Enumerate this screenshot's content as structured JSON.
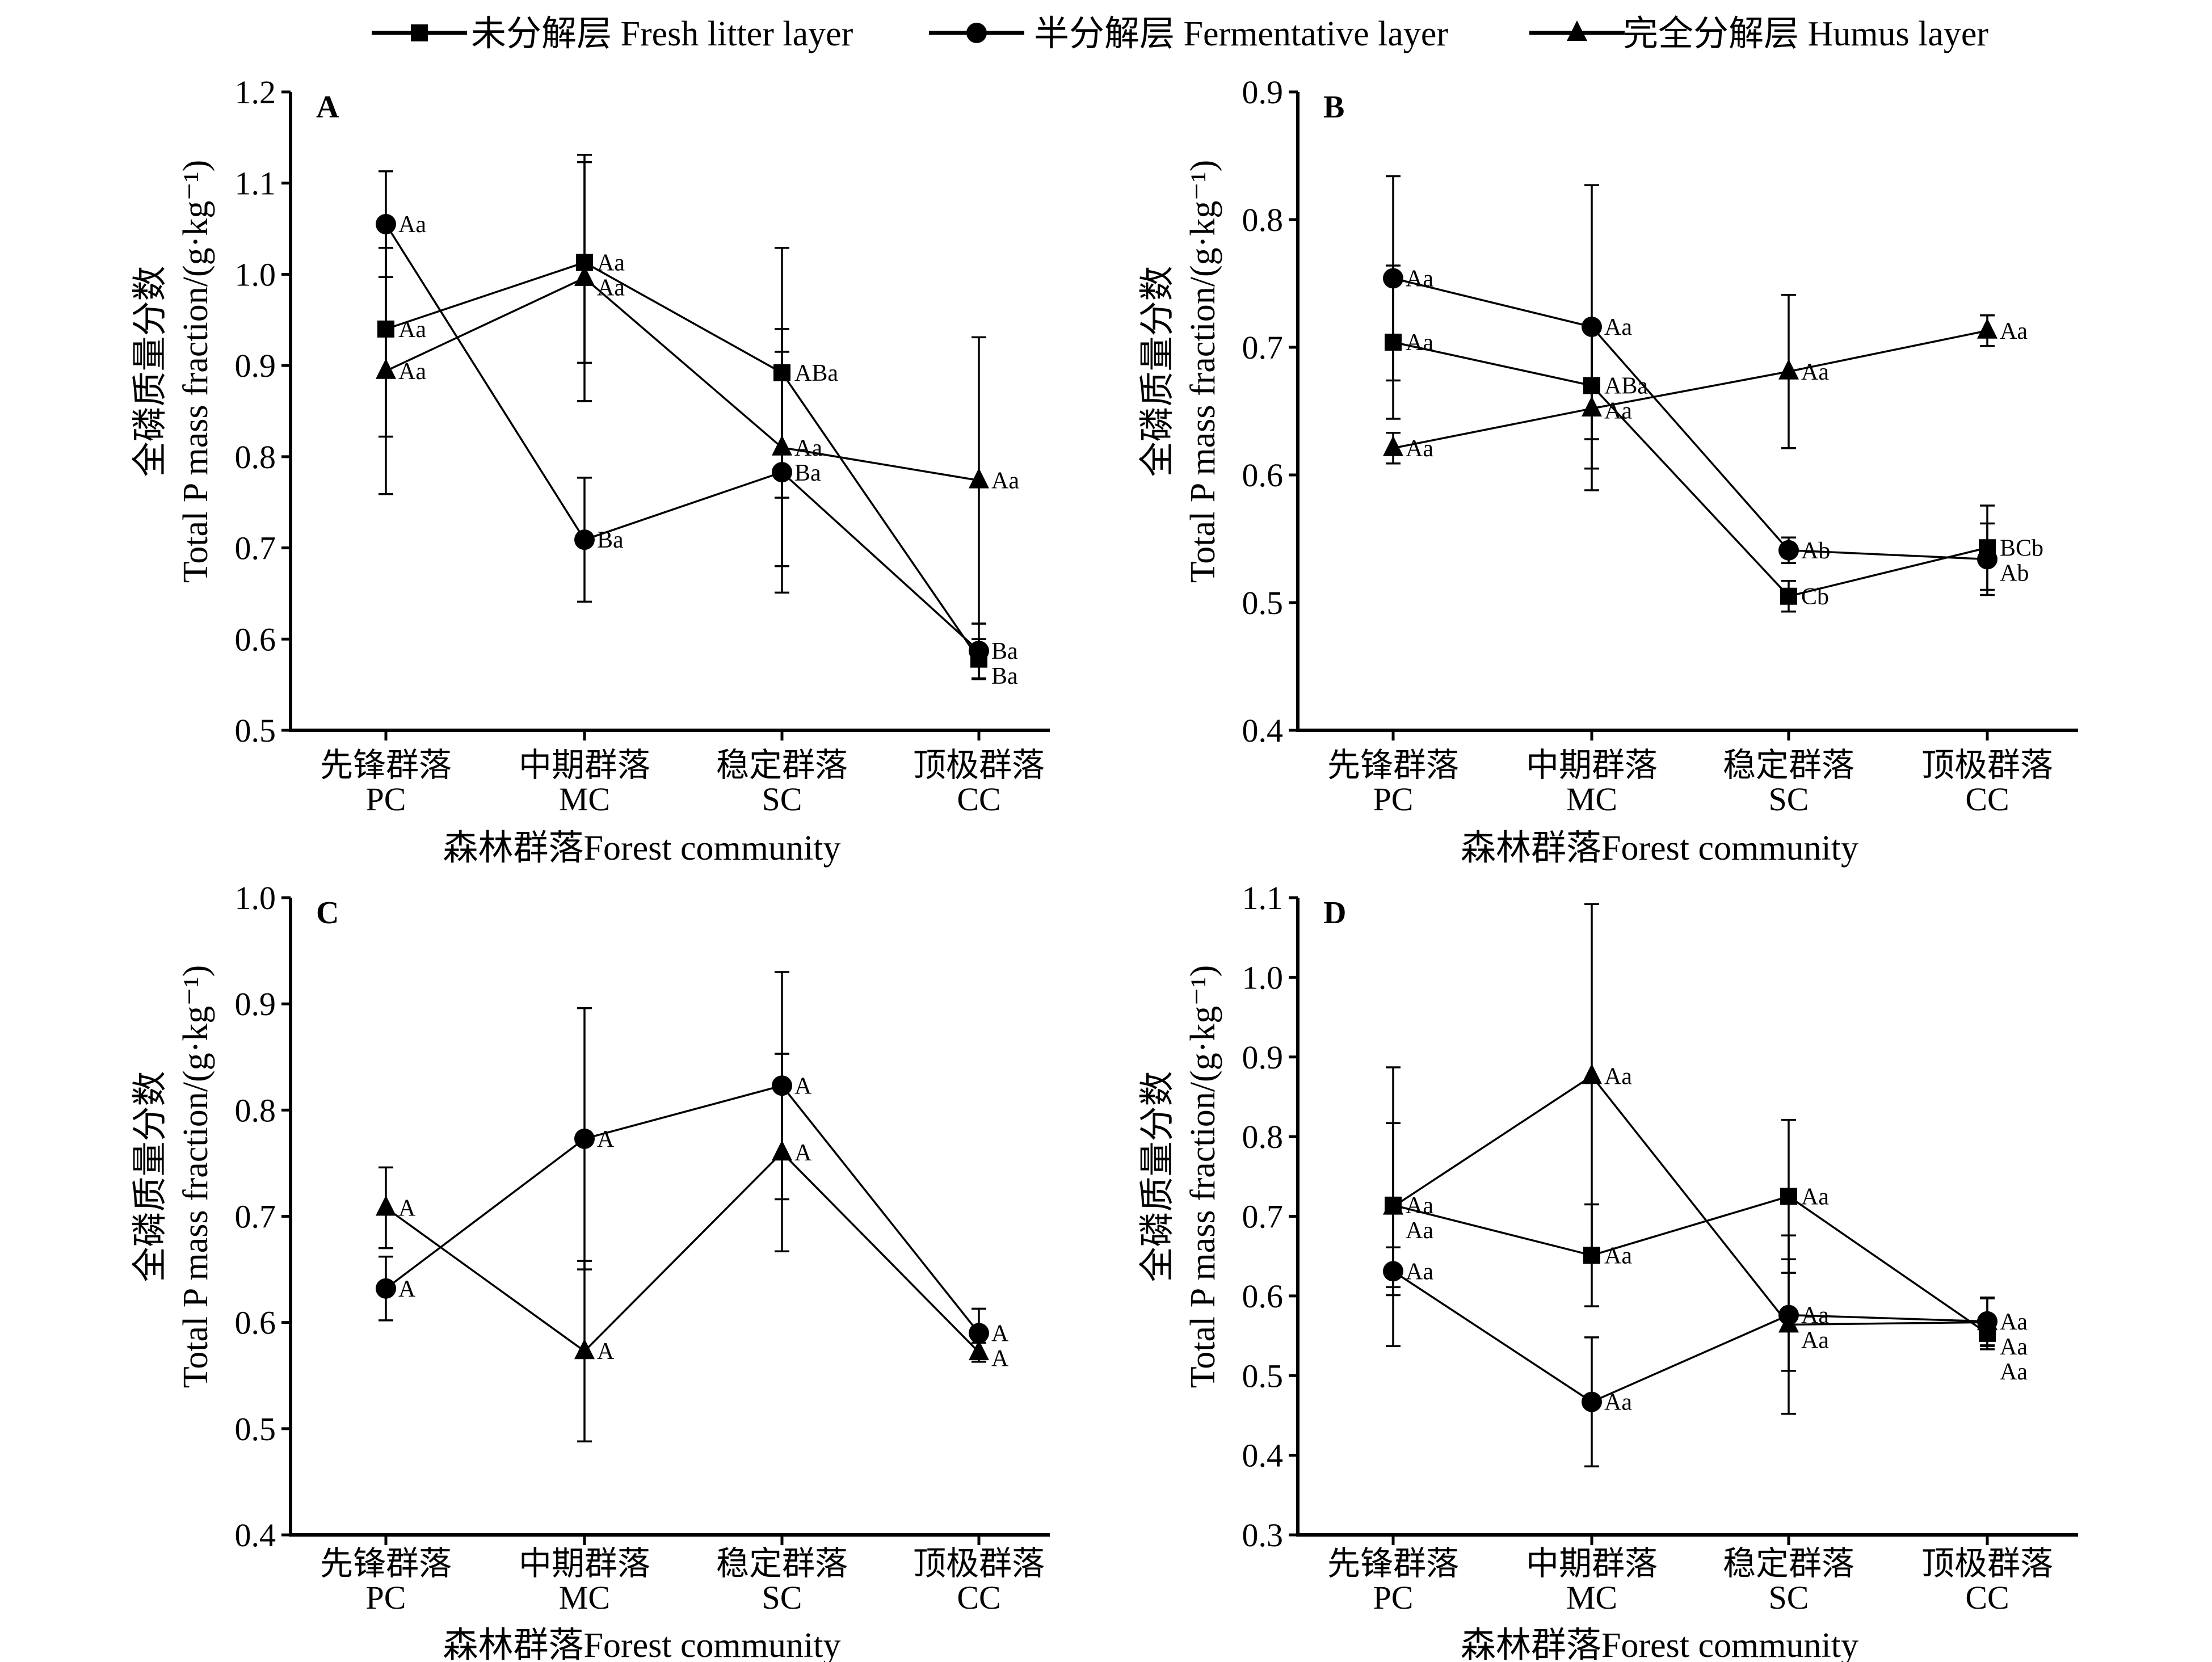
{
  "legend": [
    {
      "label": "未分解层 Fresh litter layer",
      "marker": "square"
    },
    {
      "label": "半分解层 Fermentative layer",
      "marker": "circle"
    },
    {
      "label": "完全分解层 Humus layer",
      "marker": "triangle"
    }
  ],
  "colors": {
    "ink": "#000000",
    "background": "#ffffff"
  },
  "chart_data": [
    {
      "type": "line",
      "panel": "A",
      "categories": [
        [
          "先锋群落",
          "PC"
        ],
        [
          "中期群落",
          "MC"
        ],
        [
          "稳定群落",
          "SC"
        ],
        [
          "顶极群落",
          "CC"
        ]
      ],
      "xlabel": "森林群落Forest community",
      "ylabel": [
        "全磷质量分数",
        "Total P mass fraction/(g·kg⁻¹)"
      ],
      "ylim": [
        0.5,
        1.2
      ],
      "ytick_step": 0.1,
      "series": [
        {
          "name": "未分解层 Fresh litter layer",
          "marker": "square",
          "values": [
            0.94,
            1.013,
            0.892,
            0.578
          ],
          "errors": [
            0.118,
            0.11,
            0.137,
            0.022
          ],
          "labels": [
            "Aa",
            "Aa",
            "ABa",
            "Ba"
          ]
        },
        {
          "name": "半分解层 Fermentative layer",
          "marker": "circle",
          "values": [
            1.055,
            0.709,
            0.783,
            0.587
          ],
          "errors": [
            0.058,
            0.068,
            0.132,
            0.03
          ],
          "labels": [
            "Aa",
            "Ba",
            "Ba",
            "Ba"
          ]
        },
        {
          "name": "完全分解层 Humus layer",
          "marker": "triangle",
          "values": [
            0.894,
            0.996,
            0.81,
            0.774
          ],
          "errors": [
            0.135,
            0.135,
            0.13,
            0.157
          ],
          "labels": [
            "Aa",
            "Aa",
            "Aa",
            "Aa"
          ]
        }
      ]
    },
    {
      "type": "line",
      "panel": "B",
      "categories": [
        [
          "先锋群落",
          "PC"
        ],
        [
          "中期群落",
          "MC"
        ],
        [
          "稳定群落",
          "SC"
        ],
        [
          "顶极群落",
          "CC"
        ]
      ],
      "xlabel": "森林群落Forest community",
      "ylabel": [
        "全磷质量分数",
        "Total P mass fraction/(g·kg⁻¹)"
      ],
      "ylim": [
        0.4,
        0.9
      ],
      "ytick_step": 0.1,
      "series": [
        {
          "name": "未分解层 Fresh litter layer",
          "marker": "square",
          "values": [
            0.704,
            0.67,
            0.505,
            0.543
          ],
          "errors": [
            0.06,
            0.042,
            0.012,
            0.033
          ],
          "labels": [
            "Aa",
            "ABa",
            "Cb",
            "BCb"
          ]
        },
        {
          "name": "半分解层 Fermentative layer",
          "marker": "circle",
          "values": [
            0.754,
            0.716,
            0.541,
            0.534
          ],
          "errors": [
            0.08,
            0.111,
            0.01,
            0.028
          ],
          "labels": [
            "Aa",
            "Aa",
            "Ab",
            "Ab"
          ]
        },
        {
          "name": "完全分解层 Humus layer",
          "marker": "triangle",
          "values": [
            0.621,
            0.652,
            0.681,
            0.713
          ],
          "errors": [
            0.012,
            0.064,
            0.06,
            0.012
          ],
          "labels": [
            "Aa",
            "Aa",
            "Aa",
            "Aa"
          ]
        }
      ]
    },
    {
      "type": "line",
      "panel": "C",
      "categories": [
        [
          "先锋群落",
          "PC"
        ],
        [
          "中期群落",
          "MC"
        ],
        [
          "稳定群落",
          "SC"
        ],
        [
          "顶极群落",
          "CC"
        ]
      ],
      "xlabel": "森林群落Forest community",
      "ylabel": [
        "全磷质量分数",
        "Total P mass fraction/(g·kg⁻¹)"
      ],
      "ylim": [
        0.4,
        1.0
      ],
      "ytick_step": 0.1,
      "series": [
        {
          "name": "半分解层 Fermentative layer",
          "marker": "circle",
          "values": [
            0.632,
            0.773,
            0.823,
            0.59
          ],
          "errors": [
            0.03,
            0.123,
            0.107,
            0.023
          ],
          "labels": [
            "A",
            "A",
            "A",
            "A"
          ]
        },
        {
          "name": "完全分解层 Humus layer",
          "marker": "triangle",
          "values": [
            0.708,
            0.573,
            0.76,
            0.572
          ],
          "errors": [
            0.038,
            0.085,
            0.093,
            0.009
          ],
          "labels": [
            "A",
            "A",
            "A",
            "A"
          ]
        }
      ]
    },
    {
      "type": "line",
      "panel": "D",
      "categories": [
        [
          "先锋群落",
          "PC"
        ],
        [
          "中期群落",
          "MC"
        ],
        [
          "稳定群落",
          "SC"
        ],
        [
          "顶极群落",
          "CC"
        ]
      ],
      "xlabel": "森林群落Forest community",
      "ylabel": [
        "全磷质量分数",
        "Total P mass fraction/(g·kg⁻¹)"
      ],
      "ylim": [
        0.3,
        1.1
      ],
      "ytick_step": 0.1,
      "series": [
        {
          "name": "未分解层 Fresh litter layer",
          "marker": "square",
          "values": [
            0.714,
            0.651,
            0.725,
            0.553
          ],
          "errors": [
            0.103,
            0.064,
            0.096,
            0.02
          ],
          "labels": [
            "Aa",
            "Aa",
            "Aa",
            "Aa"
          ]
        },
        {
          "name": "半分解层 Fermentative layer",
          "marker": "circle",
          "values": [
            0.631,
            0.467,
            0.576,
            0.568
          ],
          "errors": [
            0.03,
            0.081,
            0.07,
            0.03
          ],
          "labels": [
            "Aa",
            "Aa",
            "Aa",
            "Aa"
          ]
        },
        {
          "name": "完全分解层 Humus layer",
          "marker": "triangle",
          "values": [
            0.712,
            0.876,
            0.564,
            0.567
          ],
          "errors": [
            0.175,
            0.216,
            0.112,
            0.03
          ],
          "labels": [
            "Aa",
            "Aa",
            "Aa",
            "Aa"
          ]
        }
      ]
    }
  ]
}
